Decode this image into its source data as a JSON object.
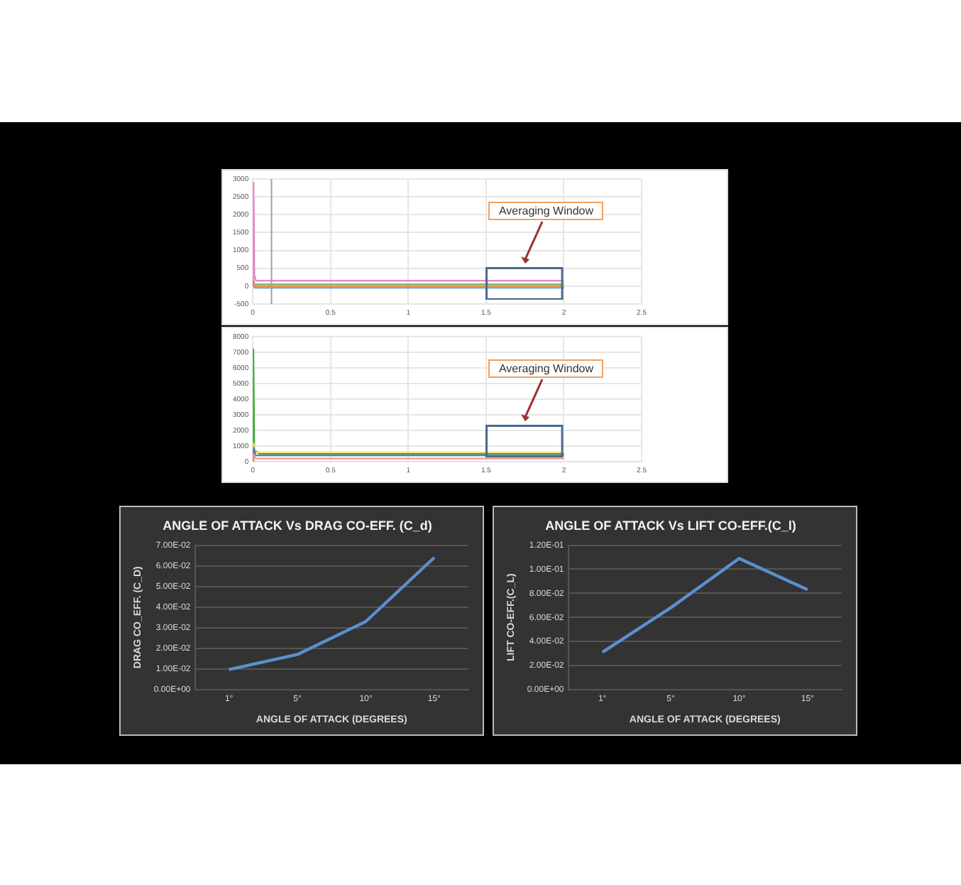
{
  "chart_data": [
    {
      "type": "line",
      "xlim": [
        0,
        2.5
      ],
      "xticks": [
        0,
        0.5,
        1,
        1.5,
        2,
        2.5
      ],
      "ylim": [
        -500,
        3000
      ],
      "yticks": [
        -500,
        0,
        500,
        1000,
        1500,
        2000,
        2500,
        3000
      ],
      "grid": true,
      "marker": "none",
      "annotations": [
        "Averaging Window"
      ],
      "ref_lines": [
        {
          "axis": "x",
          "value": 0.12,
          "color": "#a0a0a0"
        }
      ],
      "series": [
        {
          "color": "#e377c2",
          "x": [
            0,
            0.005,
            0.01,
            0.02,
            0.04,
            0.1,
            0.5,
            1,
            1.5,
            2
          ],
          "values": [
            0,
            2900,
            300,
            150,
            150,
            150,
            150,
            150,
            150,
            150
          ]
        },
        {
          "color": "#ed7d31",
          "x": [
            0,
            0.005,
            0.01,
            0.04,
            0.5,
            1,
            1.5,
            2
          ],
          "values": [
            0,
            150,
            0,
            0,
            0,
            0,
            0,
            0
          ]
        },
        {
          "color": "#5b9bd5",
          "x": [
            0,
            0.005,
            0.01,
            0.04,
            0.5,
            1,
            1.5,
            2
          ],
          "values": [
            0,
            100,
            -50,
            -50,
            -50,
            -50,
            -50,
            -50
          ]
        },
        {
          "color": "#70ad47",
          "x": [
            0,
            0.005,
            0.01,
            0.04,
            0.5,
            1,
            1.5,
            2
          ],
          "values": [
            0,
            150,
            50,
            50,
            50,
            50,
            50,
            50
          ]
        }
      ]
    },
    {
      "type": "line",
      "xlim": [
        0,
        2.5
      ],
      "xticks": [
        0,
        0.5,
        1,
        1.5,
        2,
        2.5
      ],
      "ylim": [
        0,
        8000
      ],
      "yticks": [
        0,
        1000,
        2000,
        3000,
        4000,
        5000,
        6000,
        7000,
        8000
      ],
      "grid": true,
      "marker": "none",
      "annotations": [
        "Averaging Window"
      ],
      "series": [
        {
          "color": "#ff8a80",
          "x": [
            0,
            0.005,
            0.02,
            0.5,
            1,
            1.5,
            2
          ],
          "values": [
            0,
            500,
            200,
            200,
            200,
            200,
            200
          ]
        },
        {
          "color": "#4472c4",
          "x": [
            0,
            0.005,
            0.02,
            0.5,
            1,
            1.5,
            2
          ],
          "values": [
            0,
            900,
            400,
            400,
            400,
            400,
            400
          ]
        },
        {
          "color": "#ffd966",
          "x": [
            0,
            0.005,
            0.02,
            0.5,
            1,
            1.5,
            2
          ],
          "values": [
            0,
            1200,
            600,
            600,
            600,
            600,
            600
          ]
        },
        {
          "color": "#38a832",
          "x": [
            0,
            0.004,
            0.01,
            0.02,
            0.04,
            0.5,
            1,
            1.5,
            2
          ],
          "values": [
            0,
            7200,
            800,
            700,
            500,
            500,
            500,
            500,
            500
          ]
        }
      ]
    },
    {
      "type": "line",
      "title": "ANGLE OF ATTACK Vs DRAG CO-EFF. (C_d)",
      "xlabel": "ANGLE OF ATTACK (DEGREES)",
      "ylabel": "DRAG CO_EFF. (C_D)",
      "categories": [
        "1°",
        "5°",
        "10°",
        "15°"
      ],
      "ylim": [
        0,
        0.07
      ],
      "yticks": [
        {
          "value": 0,
          "label": "0.00E+00"
        },
        {
          "value": 0.01,
          "label": "1.00E-02"
        },
        {
          "value": 0.02,
          "label": "2.00E-02"
        },
        {
          "value": 0.03,
          "label": "3.00E-02"
        },
        {
          "value": 0.04,
          "label": "4.00E-02"
        },
        {
          "value": 0.05,
          "label": "5.00E-02"
        },
        {
          "value": 0.06,
          "label": "6.00E-02"
        },
        {
          "value": 0.07,
          "label": "7.00E-02"
        }
      ],
      "grid": "y",
      "marker": "none",
      "series": [
        {
          "color": "#5b8fd0",
          "values": [
            0.0097,
            0.017,
            0.033,
            0.064
          ]
        }
      ]
    },
    {
      "type": "line",
      "title": "ANGLE OF ATTACK Vs LIFT CO-EFF.(C_l)",
      "xlabel": "ANGLE OF ATTACK (DEGREES)",
      "ylabel": "LIFT CO-EFF.(C_L)",
      "categories": [
        "1°",
        "5°",
        "10°",
        "15°"
      ],
      "ylim": [
        0,
        0.12
      ],
      "yticks": [
        {
          "value": 0,
          "label": "0.00E+00"
        },
        {
          "value": 0.02,
          "label": "2.00E-02"
        },
        {
          "value": 0.04,
          "label": "4.00E-02"
        },
        {
          "value": 0.06,
          "label": "6.00E-02"
        },
        {
          "value": 0.08,
          "label": "8.00E-02"
        },
        {
          "value": 0.1,
          "label": "1.00E-01"
        },
        {
          "value": 0.12,
          "label": "1.20E-01"
        }
      ],
      "grid": "y",
      "marker": "none",
      "series": [
        {
          "color": "#5b8fd0",
          "values": [
            0.031,
            0.068,
            0.109,
            0.083
          ]
        }
      ]
    }
  ]
}
